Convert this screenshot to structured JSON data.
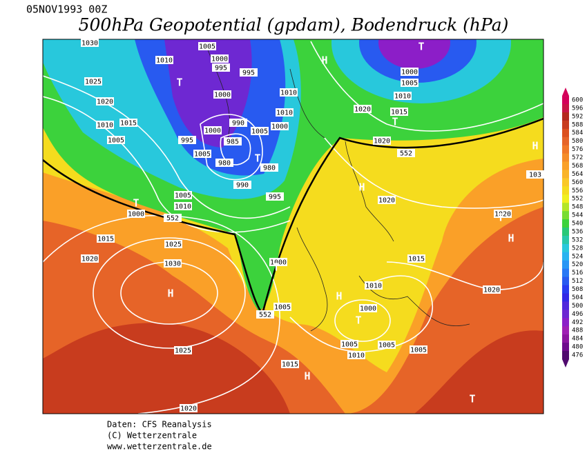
{
  "header": {
    "date": "05NOV1993 00Z",
    "title": "500hPa Geopotential (gpdam), Bodendruck (hPa)"
  },
  "colorbar": {
    "levels": [
      600,
      596,
      592,
      588,
      584,
      580,
      576,
      572,
      568,
      564,
      560,
      556,
      552,
      548,
      544,
      540,
      536,
      532,
      528,
      524,
      520,
      516,
      512,
      508,
      504,
      500,
      496,
      492,
      488,
      484,
      480,
      476
    ],
    "colors": [
      "#d4005a",
      "#c81446",
      "#b4281e",
      "#c83c1e",
      "#dc501e",
      "#e66428",
      "#f07828",
      "#f58c28",
      "#faa028",
      "#fab428",
      "#fac828",
      "#f5dc1e",
      "#f0f01e",
      "#b4e628",
      "#78dc32",
      "#3cd23c",
      "#28c878",
      "#28c8aa",
      "#28c8dc",
      "#28b4f0",
      "#2896f5",
      "#2878f5",
      "#285af0",
      "#283cf0",
      "#3228e6",
      "#5028dc",
      "#6e28d2",
      "#8c1ec8",
      "#a01eb4",
      "#8c14a0",
      "#6e0a8c",
      "#500a6e"
    ]
  },
  "isobar_labels": [
    "1030",
    "1010",
    "1005",
    "1000",
    "995",
    "995",
    "1025",
    "1020",
    "1010",
    "1015",
    "1005",
    "1000",
    "1010",
    "1010",
    "1000",
    "990",
    "1005",
    "1000",
    "995",
    "985",
    "980",
    "1005",
    "980",
    "990",
    "995",
    "1005",
    "1010",
    "552",
    "1000",
    "1015",
    "1025",
    "1030",
    "1020",
    "1025",
    "1020",
    "1020",
    "1015",
    "1010",
    "1005",
    "1000",
    "1020",
    "552",
    "1020",
    "1020",
    "1015",
    "1010",
    "1020",
    "1000",
    "1005",
    "1005",
    "1005",
    "1010",
    "1015",
    "1005",
    "552",
    "1000",
    "103"
  ],
  "pressure_centers": [
    "T",
    "H",
    "T",
    "T",
    "H",
    "T",
    "H",
    "T",
    "T",
    "H",
    "T",
    "H",
    "H",
    "T",
    "H",
    "T"
  ],
  "footer": [
    "Daten: CFS Reanalysis",
    "(C) Wetterzentrale",
    "www.wetterzentrale.de"
  ]
}
